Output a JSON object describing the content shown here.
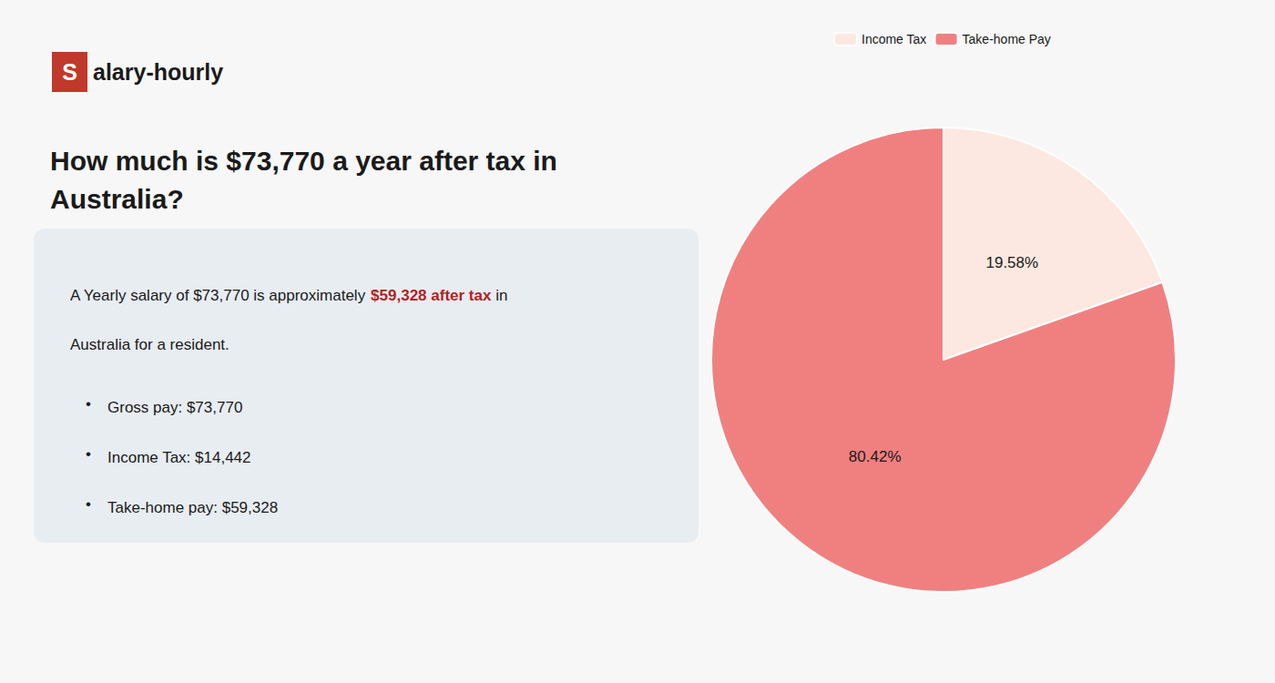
{
  "chart_data": {
    "type": "pie",
    "title": "How much is $73,770 a year after tax in\nAustralia?",
    "categories": [
      "Income Tax",
      "Take-home Pay"
    ],
    "values": [
      19.58,
      80.42
    ],
    "value_labels": [
      "19.58%",
      "80.42%"
    ],
    "colors": [
      "#fce8e0",
      "#f08080"
    ],
    "data_labels": true,
    "legend": "top",
    "annotations": [
      [
        {
          "text": "S",
          "color": "#c0392b"
        },
        {
          "text": "alary-hourly"
        }
      ],
      [
        {
          "text": "A Yearly salary of $73,770 is approximately "
        },
        {
          "text": "$59,328 after tax",
          "color": "#b22222"
        },
        {
          "text": " in"
        }
      ],
      [
        {
          "text": "Australia for a resident."
        }
      ],
      [
        {
          "text": "•"
        },
        {
          "text": "Gross pay: $73,770"
        }
      ],
      [
        {
          "text": "•"
        },
        {
          "text": "Income Tax: $14,442"
        }
      ],
      [
        {
          "text": "•"
        },
        {
          "text": "Take-home pay: $59,328"
        }
      ]
    ]
  }
}
